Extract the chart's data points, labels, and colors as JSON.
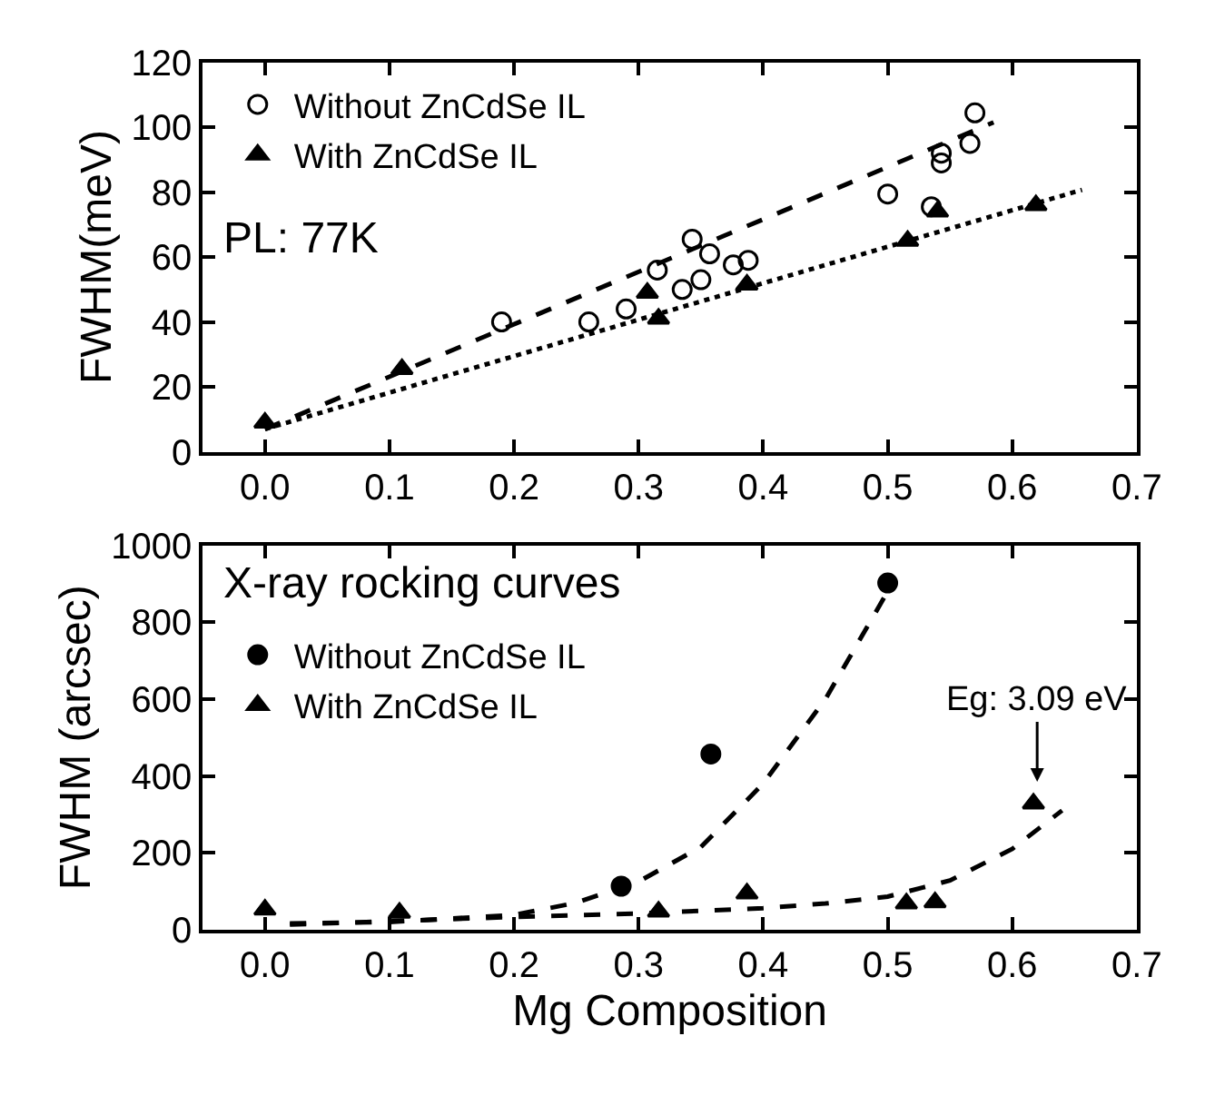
{
  "chart_data": [
    {
      "type": "scatter",
      "ylabel": "FWHM(meV)",
      "xlim": [
        -0.05,
        0.7
      ],
      "ylim": [
        0,
        120
      ],
      "xticks": [
        {
          "value": 0,
          "label": "0.0"
        },
        0.1,
        0.2,
        0.3,
        0.4,
        0.5,
        0.6,
        0.7
      ],
      "yticks": [
        0,
        20,
        40,
        60,
        80,
        100,
        120
      ],
      "legend": "top left",
      "annotations": [
        "PL: 77K"
      ],
      "series": [
        {
          "name": "Without ZnCdSe IL",
          "color": "#000000",
          "marker": "circle",
          "x": [
            0.19,
            0.26,
            0.29,
            0.315,
            0.335,
            0.343,
            0.35,
            0.357,
            0.376,
            0.388,
            0.5,
            0.535,
            0.543,
            0.543,
            0.566,
            0.57
          ],
          "values": [
            40,
            40,
            44,
            56,
            50,
            65.5,
            53,
            61,
            57.6,
            59,
            79.4,
            75.5,
            92,
            89,
            95,
            104.4
          ]
        },
        {
          "name": "With ZnCdSe IL",
          "color": "#000000",
          "marker": "triangle",
          "x": [
            0,
            0.11,
            0.307,
            0.316,
            0.387,
            0.516,
            0.54,
            0.619
          ],
          "values": [
            9,
            25.5,
            49,
            41,
            51.5,
            65,
            74,
            76
          ]
        },
        {
          "type": "line",
          "color": "#000000",
          "marker": "none",
          "line_style": "dashed",
          "x": [
            0,
            0.585
          ],
          "values": [
            7,
            101.5
          ]
        },
        {
          "type": "line",
          "color": "#000000",
          "marker": "none",
          "line_style": "dotted",
          "x": [
            0,
            0.656
          ],
          "values": [
            7,
            80.7
          ]
        }
      ]
    },
    {
      "type": "scatter",
      "xlabel": "Mg Composition",
      "ylabel": "FWHM (arcsec)",
      "xlim": [
        -0.05,
        0.7
      ],
      "ylim": [
        0,
        1000
      ],
      "xticks": [
        {
          "value": 0,
          "label": "0.0"
        },
        0.1,
        0.2,
        0.3,
        0.4,
        0.5,
        0.6,
        0.7
      ],
      "yticks": [
        0,
        200,
        400,
        600,
        800,
        1000
      ],
      "legend": "top left",
      "annotations": [
        "X-ray rocking curves",
        {
          "text": "Eg: 3.09 eV",
          "x": 0.62,
          "y": 328
        }
      ],
      "series": [
        {
          "name": "Without ZnCdSe IL",
          "color": "#000000",
          "marker": "circle",
          "x": [
            0.286,
            0.358,
            0.5
          ],
          "values": [
            113,
            457,
            902
          ]
        },
        {
          "name": "With ZnCdSe IL",
          "color": "#000000",
          "marker": "triangle",
          "x": [
            0,
            0.108,
            0.316,
            0.387,
            0.515,
            0.538,
            0.617
          ],
          "values": [
            52,
            44,
            47,
            94,
            68,
            71,
            328
          ]
        },
        {
          "type": "line",
          "color": "#000000",
          "marker": "none",
          "line_style": "dashed",
          "x": [
            0.02,
            0.1,
            0.2,
            0.25,
            0.3,
            0.35,
            0.4,
            0.45,
            0.5
          ],
          "values": [
            16,
            20,
            38,
            70,
            125,
            215,
            380,
            600,
            880
          ]
        },
        {
          "type": "line",
          "color": "#000000",
          "marker": "none",
          "line_style": "dashed",
          "x": [
            0.02,
            0.2,
            0.3,
            0.4,
            0.45,
            0.5,
            0.55,
            0.6,
            0.64
          ],
          "values": [
            13,
            33,
            42,
            56,
            68,
            86,
            128,
            210,
            310
          ]
        }
      ]
    }
  ]
}
